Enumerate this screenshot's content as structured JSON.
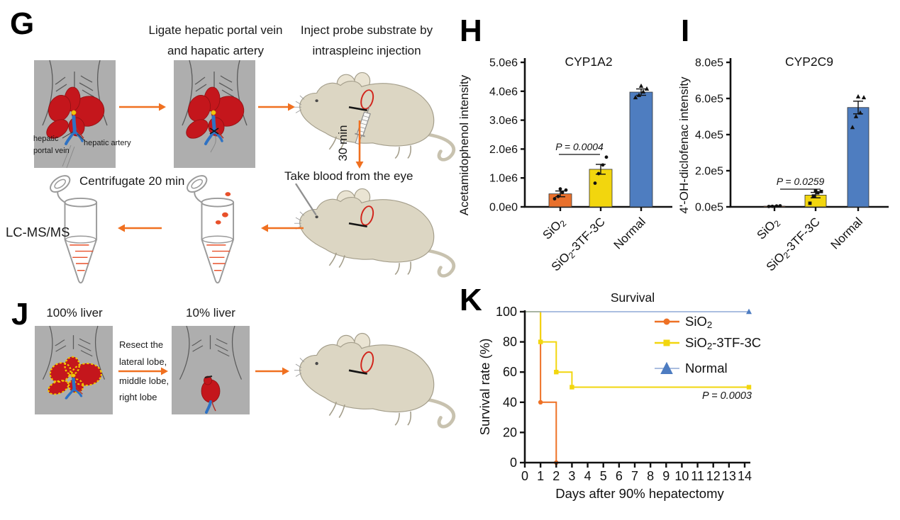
{
  "figure": {
    "background": "#ffffff"
  },
  "panels": {
    "g": {
      "label": "G",
      "step1_line1": "Ligate hepatic portal vein",
      "step1_line2": "and hapatic artery",
      "step2_line1": "Inject probe substrate by",
      "step2_line2": "intraspleinc injection",
      "timer": "30 min",
      "step3": "Take blood from the eye",
      "step4": "Centrifugate 20 min",
      "step5": "LC-MS/MS",
      "anatomy": {
        "label1a": "hepatic",
        "label1b": "portal vein",
        "label2": "hepatic artery"
      }
    },
    "j": {
      "label": "J",
      "liver_full": "100% liver",
      "liver_small": "10% liver",
      "resect_lines": [
        "Resect the",
        "lateral lobe,",
        "middle lobe,",
        "right lobe"
      ]
    }
  },
  "colors": {
    "orange": "#E8702C",
    "yellow": "#F2D60E",
    "blue_bar": "#4E7DC0",
    "blue_line": "#8FA9D6",
    "blue_marker": "#4D7CC1",
    "arrow_orange": "#F07020",
    "liver_red": "#C4161C",
    "vessel_blue": "#2E72C4",
    "box_gray": "#AEAEAE"
  },
  "chart_data": [
    {
      "id": "h",
      "panel_label": "H",
      "type": "bar",
      "title": "CYP1A2",
      "ylabel": "Acetamidophenol intensity",
      "yticks": [
        "0.0e0",
        "1.0e6",
        "2.0e6",
        "3.0e6",
        "4.0e6",
        "5.0e6"
      ],
      "ymax": 5.0,
      "unit": "1e6",
      "ylim": [
        0,
        5.0
      ],
      "categories": [
        "SiO2",
        "SiO2-3TF-3C",
        "Normal"
      ],
      "values": [
        0.45,
        1.3,
        3.97
      ],
      "errors": [
        0.1,
        0.17,
        0.11
      ],
      "points": [
        [
          0.28,
          0.36,
          0.5,
          0.58,
          0.62
        ],
        [
          0.82,
          1.15,
          1.45,
          1.72
        ],
        [
          3.78,
          3.86,
          3.98,
          4.08,
          4.18
        ]
      ],
      "point_shape": [
        "circle",
        "circle",
        "triangle"
      ],
      "bar_colors": [
        "#E8702C",
        "#F2D60E",
        "#4E7DC0"
      ],
      "p_label": "P = 0.0004",
      "p_between": [
        "SiO2",
        "SiO2-3TF-3C"
      ]
    },
    {
      "id": "i",
      "panel_label": "I",
      "type": "bar",
      "title": "CYP2C9",
      "ylabel": "4'-OH-diclofenac intensity",
      "yticks": [
        "0.0e5",
        "2.0e5",
        "4.0e5",
        "6.0e5",
        "8.0e5"
      ],
      "ymax": 8.0,
      "unit": "1e5",
      "ylim": [
        0,
        8.0
      ],
      "categories": [
        "SiO2",
        "SiO2-3TF-3C",
        "Normal"
      ],
      "values": [
        0.04,
        0.65,
        5.5
      ],
      "errors": [
        0.02,
        0.15,
        0.35
      ],
      "points": [
        [
          0.02,
          0.03,
          0.05,
          0.06
        ],
        [
          0.2,
          0.6,
          0.78,
          0.85,
          0.9
        ],
        [
          4.4,
          5.0,
          5.2,
          6.05,
          6.1
        ]
      ],
      "point_shape": [
        "circle",
        "square",
        "triangle"
      ],
      "bar_colors": [
        "#E8702C",
        "#F2D60E",
        "#4E7DC0"
      ],
      "p_label": "P = 0.0259",
      "p_between": [
        "SiO2",
        "SiO2-3TF-3C"
      ]
    },
    {
      "id": "k",
      "panel_label": "K",
      "type": "line",
      "title": "Survival",
      "xlabel": "Days after 90% hepatectomy",
      "ylabel": "Survival rate (%)",
      "xticks": [
        0,
        1,
        2,
        3,
        4,
        5,
        6,
        7,
        8,
        9,
        10,
        11,
        12,
        13,
        14
      ],
      "yticks": [
        0,
        20,
        40,
        60,
        80,
        100
      ],
      "xlim": [
        0,
        14
      ],
      "ylim": [
        0,
        100
      ],
      "legend_position": "top-right",
      "p_label": "P = 0.0003",
      "series": [
        {
          "name": "SiO2",
          "color": "#EE7125",
          "marker": "circle",
          "points": [
            [
              0,
              100
            ],
            [
              1,
              100
            ],
            [
              1,
              40
            ],
            [
              2,
              40
            ],
            [
              2,
              0
            ]
          ],
          "marker_points": [
            [
              1,
              40
            ],
            [
              2,
              0
            ]
          ]
        },
        {
          "name": "SiO2-3TF-3C",
          "color": "#F2D60E",
          "marker": "square",
          "points": [
            [
              0,
              100
            ],
            [
              1,
              100
            ],
            [
              1,
              80
            ],
            [
              2,
              80
            ],
            [
              2,
              60
            ],
            [
              3,
              60
            ],
            [
              3,
              50
            ],
            [
              14,
              50
            ]
          ],
          "marker_points": [
            [
              1,
              80
            ],
            [
              2,
              60
            ],
            [
              3,
              50
            ],
            [
              14,
              50
            ]
          ]
        },
        {
          "name": "Normal",
          "color": "#8FA9D6",
          "legend_color": "#4D7CC1",
          "marker": "triangle",
          "points": [
            [
              0,
              100
            ],
            [
              14,
              100
            ]
          ],
          "marker_points": [
            [
              14,
              100
            ]
          ]
        }
      ]
    }
  ]
}
